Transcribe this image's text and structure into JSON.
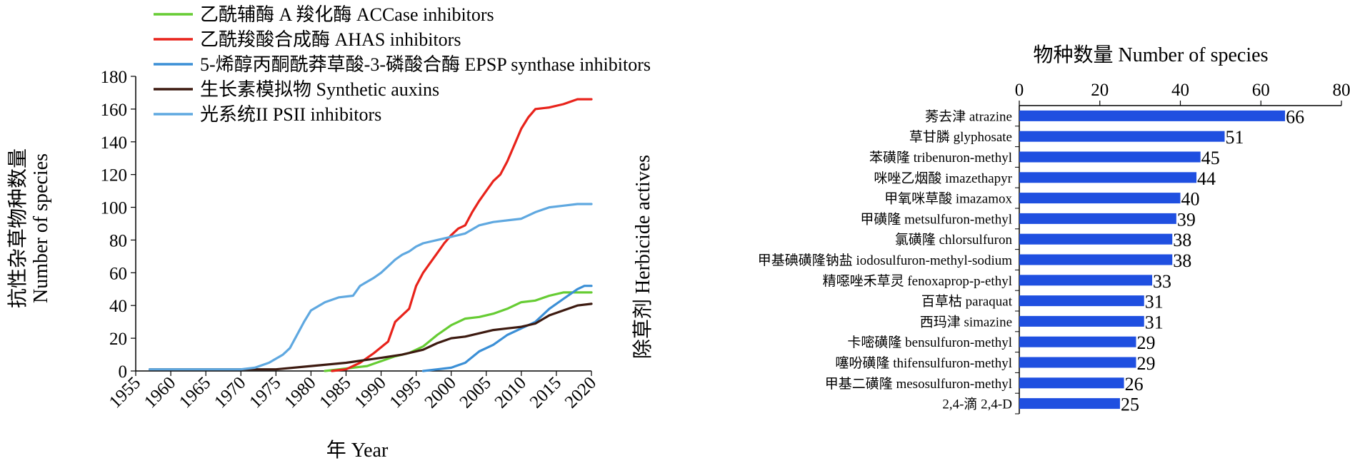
{
  "chart_data": [
    {
      "type": "line",
      "xlabel": "年 Year",
      "ylabel": [
        "抗性杂草物种数量",
        "Number of species"
      ],
      "xlim": [
        1955,
        2020
      ],
      "ylim": [
        0,
        180
      ],
      "xticks": [
        1955,
        1960,
        1965,
        1970,
        1975,
        1980,
        1985,
        1990,
        1995,
        2000,
        2005,
        2010,
        2015,
        2020
      ],
      "yticks": [
        0,
        20,
        40,
        60,
        80,
        100,
        120,
        140,
        160,
        180
      ],
      "grid": false,
      "legend_position": "top",
      "series": [
        {
          "name": "乙酰辅酶 A 羧化酶 ACCase inhibitors",
          "color": "#66cc33",
          "points": [
            [
              1982,
              0
            ],
            [
              1984,
              1
            ],
            [
              1986,
              2
            ],
            [
              1988,
              3
            ],
            [
              1990,
              6
            ],
            [
              1992,
              9
            ],
            [
              1994,
              11
            ],
            [
              1996,
              15
            ],
            [
              1998,
              22
            ],
            [
              2000,
              28
            ],
            [
              2002,
              32
            ],
            [
              2004,
              33
            ],
            [
              2006,
              35
            ],
            [
              2008,
              38
            ],
            [
              2010,
              42
            ],
            [
              2012,
              43
            ],
            [
              2014,
              46
            ],
            [
              2016,
              48
            ],
            [
              2018,
              48
            ],
            [
              2020,
              48
            ]
          ]
        },
        {
          "name": "乙酰羧酸合成酶 AHAS inhibitors",
          "color": "#e8231b",
          "points": [
            [
              1983,
              0
            ],
            [
              1985,
              1
            ],
            [
              1987,
              5
            ],
            [
              1989,
              11
            ],
            [
              1991,
              18
            ],
            [
              1992,
              30
            ],
            [
              1994,
              38
            ],
            [
              1995,
              52
            ],
            [
              1996,
              60
            ],
            [
              1997,
              66
            ],
            [
              1998,
              72
            ],
            [
              1999,
              78
            ],
            [
              2000,
              83
            ],
            [
              2001,
              87
            ],
            [
              2002,
              89
            ],
            [
              2003,
              97
            ],
            [
              2004,
              104
            ],
            [
              2005,
              110
            ],
            [
              2006,
              116
            ],
            [
              2007,
              120
            ],
            [
              2008,
              128
            ],
            [
              2009,
              138
            ],
            [
              2010,
              148
            ],
            [
              2011,
              155
            ],
            [
              2012,
              160
            ],
            [
              2014,
              161
            ],
            [
              2016,
              163
            ],
            [
              2018,
              166
            ],
            [
              2020,
              166
            ]
          ]
        },
        {
          "name": "5-烯醇丙酮酰莽草酸-3-磷酸合酶 EPSP synthase inhibitors",
          "color": "#3b8fd6",
          "points": [
            [
              1996,
              0
            ],
            [
              1998,
              1
            ],
            [
              2000,
              2
            ],
            [
              2002,
              5
            ],
            [
              2004,
              12
            ],
            [
              2006,
              16
            ],
            [
              2008,
              22
            ],
            [
              2010,
              26
            ],
            [
              2012,
              30
            ],
            [
              2014,
              38
            ],
            [
              2016,
              44
            ],
            [
              2018,
              50
            ],
            [
              2019,
              52
            ],
            [
              2020,
              52
            ]
          ]
        },
        {
          "name": "生长素模拟物 Synthetic auxins",
          "color": "#3d1a10",
          "points": [
            [
              1957,
              1
            ],
            [
              1965,
              1
            ],
            [
              1970,
              1
            ],
            [
              1975,
              1
            ],
            [
              1980,
              3
            ],
            [
              1985,
              5
            ],
            [
              1990,
              8
            ],
            [
              1993,
              10
            ],
            [
              1996,
              13
            ],
            [
              1998,
              17
            ],
            [
              2000,
              20
            ],
            [
              2002,
              21
            ],
            [
              2004,
              23
            ],
            [
              2006,
              25
            ],
            [
              2008,
              26
            ],
            [
              2010,
              27
            ],
            [
              2012,
              29
            ],
            [
              2014,
              34
            ],
            [
              2016,
              37
            ],
            [
              2018,
              40
            ],
            [
              2020,
              41
            ]
          ]
        },
        {
          "name": "光系统II PSII inhibitors",
          "color": "#5fa8e0",
          "points": [
            [
              1957,
              1
            ],
            [
              1965,
              1
            ],
            [
              1970,
              1
            ],
            [
              1972,
              2
            ],
            [
              1974,
              5
            ],
            [
              1976,
              10
            ],
            [
              1977,
              14
            ],
            [
              1978,
              22
            ],
            [
              1979,
              30
            ],
            [
              1980,
              37
            ],
            [
              1982,
              42
            ],
            [
              1984,
              45
            ],
            [
              1986,
              46
            ],
            [
              1987,
              52
            ],
            [
              1989,
              57
            ],
            [
              1990,
              60
            ],
            [
              1991,
              64
            ],
            [
              1992,
              68
            ],
            [
              1993,
              71
            ],
            [
              1994,
              73
            ],
            [
              1995,
              76
            ],
            [
              1996,
              78
            ],
            [
              1998,
              80
            ],
            [
              2000,
              82
            ],
            [
              2002,
              84
            ],
            [
              2004,
              89
            ],
            [
              2006,
              91
            ],
            [
              2008,
              92
            ],
            [
              2010,
              93
            ],
            [
              2012,
              97
            ],
            [
              2014,
              100
            ],
            [
              2016,
              101
            ],
            [
              2018,
              102
            ],
            [
              2020,
              102
            ]
          ]
        }
      ]
    },
    {
      "type": "bar",
      "orientation": "horizontal",
      "title": "物种数量 Number of species",
      "ylabel": "除草剂 Herbicide actives",
      "xlim": [
        0,
        80
      ],
      "xticks": [
        0,
        20,
        40,
        60,
        80
      ],
      "bar_color": "#1f4fe0",
      "categories": [
        "莠去津 atrazine",
        "草甘膦 glyphosate",
        "苯磺隆 tribenuron-methyl",
        "咪唑乙烟酸 imazethapyr",
        "甲氧咪草酸 imazamox",
        "甲磺隆 metsulfuron-methyl",
        "氯磺隆 chlorsulfuron",
        "甲基碘磺隆钠盐 iodosulfuron-methyl-sodium",
        "精噁唑禾草灵 fenoxaprop-p-ethyl",
        "百草枯 paraquat",
        "西玛津 simazine",
        "卡嘧磺隆 bensulfuron-methyl",
        "噻吩磺隆 thifensulfuron-methyl",
        "甲基二磺隆 mesosulfuron-methyl",
        "2,4-滴 2,4-D"
      ],
      "values": [
        66,
        51,
        45,
        44,
        40,
        39,
        38,
        38,
        33,
        31,
        31,
        29,
        29,
        26,
        25
      ]
    }
  ]
}
